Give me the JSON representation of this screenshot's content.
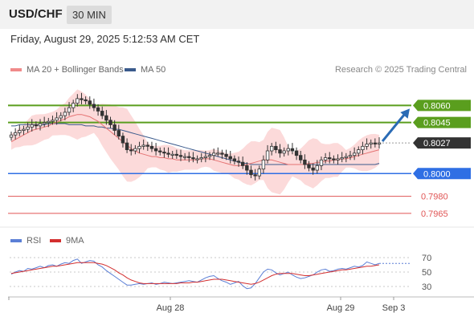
{
  "header": {
    "symbol": "USD/CHF",
    "interval": "30 MIN",
    "datetime": "Friday, August 29, 2025 5:12:53 AM CET"
  },
  "legend": {
    "ma20_label": "MA 20 + Bollinger Bands",
    "ma50_label": "MA 50",
    "research": "Research © 2025 Trading Central",
    "rsi_label": "RSI",
    "ma9_label": "9MA"
  },
  "colors": {
    "ma20": "#e57373",
    "bollinger_fill": "#fbd4d4",
    "ma50": "#3a5a8c",
    "resistance": "#5a9e1e",
    "support": "#2f6fe4",
    "target": "#e05555",
    "current": "#333333",
    "rsi": "#5b7fd6",
    "rsi_ma": "#d32f2f",
    "arrow": "#2a6bb5"
  },
  "chart_data": [
    {
      "type": "candlestick",
      "title": "USD/CHF",
      "x_labels": [
        "Aug 28",
        "Aug 29",
        "Sep 3"
      ],
      "ylim": [
        0.7955,
        0.8085
      ],
      "current_price": "0.8027",
      "levels": [
        {
          "label": "0.8060",
          "value": 0.806,
          "kind": "resistance"
        },
        {
          "label": "0.8045",
          "value": 0.8045,
          "kind": "resistance"
        },
        {
          "label": "0.8027",
          "value": 0.8027,
          "kind": "current"
        },
        {
          "label": "0.8000",
          "value": 0.8,
          "kind": "support"
        },
        {
          "label": "0.7980",
          "value": 0.798,
          "kind": "target"
        },
        {
          "label": "0.7965",
          "value": 0.7965,
          "kind": "target"
        }
      ],
      "close": [
        0.8034,
        0.8036,
        0.8038,
        0.8039,
        0.8041,
        0.8043,
        0.8042,
        0.8044,
        0.8045,
        0.8046,
        0.8047,
        0.8049,
        0.8051,
        0.8054,
        0.8058,
        0.8062,
        0.8066,
        0.8065,
        0.8064,
        0.8061,
        0.8058,
        0.8055,
        0.8051,
        0.8047,
        0.8043,
        0.8038,
        0.8033,
        0.8027,
        0.8021,
        0.802,
        0.8022,
        0.8024,
        0.8025,
        0.8024,
        0.8022,
        0.802,
        0.8019,
        0.8018,
        0.8017,
        0.8017,
        0.8016,
        0.8015,
        0.8015,
        0.8014,
        0.8013,
        0.8013,
        0.8014,
        0.8015,
        0.8016,
        0.8018,
        0.8018,
        0.8017,
        0.8015,
        0.8013,
        0.8011,
        0.801,
        0.8007,
        0.8003,
        0.7999,
        0.7998,
        0.8004,
        0.8012,
        0.802,
        0.8024,
        0.8021,
        0.8018,
        0.802,
        0.8022,
        0.802,
        0.8016,
        0.8012,
        0.8008,
        0.8005,
        0.8003,
        0.8007,
        0.8012,
        0.8014,
        0.8013,
        0.8012,
        0.8013,
        0.8014,
        0.8015,
        0.8016,
        0.8018,
        0.8021,
        0.8024,
        0.8026,
        0.8027,
        0.8026,
        0.8027
      ],
      "ma20": [
        0.8028,
        0.803,
        0.8032,
        0.8034,
        0.8036,
        0.8038,
        0.8039,
        0.804,
        0.8041,
        0.8042,
        0.8044,
        0.8045,
        0.8047,
        0.8048,
        0.805,
        0.8051,
        0.8052,
        0.8052,
        0.8051,
        0.805,
        0.8048,
        0.8046,
        0.8043,
        0.804,
        0.8037,
        0.8034,
        0.8031,
        0.8028,
        0.8025,
        0.8022,
        0.802,
        0.8018,
        0.8017,
        0.8016,
        0.8015,
        0.8015,
        0.8014,
        0.8014,
        0.8013,
        0.8013,
        0.8012,
        0.8012,
        0.8012,
        0.8012,
        0.8012,
        0.8012,
        0.8013,
        0.8013,
        0.8013,
        0.8012,
        0.8011,
        0.801,
        0.8009,
        0.8008,
        0.8007,
        0.8007,
        0.8007,
        0.8008,
        0.8009,
        0.801,
        0.8011,
        0.8012,
        0.8012,
        0.8012,
        0.8011,
        0.801,
        0.8009,
        0.8008,
        0.8008,
        0.8008,
        0.8008,
        0.8008,
        0.8009,
        0.8009,
        0.801,
        0.801,
        0.8011,
        0.8011,
        0.8012,
        0.8012,
        0.8013,
        0.8013,
        0.8014,
        0.8015,
        0.8016,
        0.8017,
        0.8018,
        0.8019,
        0.802,
        0.8021
      ],
      "ma50": [
        0.8042,
        0.8042,
        0.8043,
        0.8043,
        0.8043,
        0.8043,
        0.8043,
        0.8043,
        0.8043,
        0.8044,
        0.8044,
        0.8044,
        0.8044,
        0.8044,
        0.8043,
        0.8043,
        0.8043,
        0.8043,
        0.8042,
        0.8042,
        0.8042,
        0.8041,
        0.8041,
        0.804,
        0.804,
        0.8039,
        0.8039,
        0.8038,
        0.8037,
        0.8036,
        0.8035,
        0.8034,
        0.8033,
        0.8032,
        0.8031,
        0.803,
        0.8029,
        0.8028,
        0.8027,
        0.8026,
        0.8025,
        0.8024,
        0.8023,
        0.8022,
        0.8021,
        0.802,
        0.8019,
        0.8018,
        0.8017,
        0.8016,
        0.8015,
        0.8014,
        0.8013,
        0.8012,
        0.8011,
        0.801,
        0.8009,
        0.8009,
        0.8008,
        0.8008,
        0.8008,
        0.8008,
        0.8008,
        0.8008,
        0.8008,
        0.8008,
        0.8008,
        0.8008,
        0.8008,
        0.8008,
        0.8008,
        0.8008,
        0.8008,
        0.8008,
        0.8008,
        0.8008,
        0.8008,
        0.8008,
        0.8008,
        0.8008,
        0.8008,
        0.8008,
        0.8008,
        0.8008,
        0.8008,
        0.8008,
        0.8008,
        0.8008,
        0.8008,
        0.8009
      ],
      "projection": {
        "from": 0.8027,
        "to": 0.806
      }
    },
    {
      "type": "line",
      "series": [
        {
          "name": "RSI"
        },
        {
          "name": "9MA"
        }
      ],
      "ylim": [
        20,
        80
      ],
      "ticks": [
        "70",
        "50",
        "30"
      ],
      "tick_values": [
        70,
        50,
        30
      ],
      "rsi": [
        47,
        50,
        52,
        51,
        55,
        54,
        56,
        58,
        56,
        59,
        60,
        58,
        61,
        63,
        62,
        66,
        68,
        62,
        64,
        66,
        65,
        60,
        57,
        52,
        48,
        44,
        40,
        36,
        32,
        32,
        33,
        34,
        33,
        34,
        35,
        33,
        34,
        36,
        35,
        34,
        35,
        36,
        37,
        38,
        37,
        36,
        39,
        42,
        44,
        45,
        41,
        38,
        36,
        33,
        35,
        37,
        31,
        27,
        28,
        34,
        42,
        50,
        54,
        53,
        49,
        46,
        48,
        50,
        46,
        43,
        41,
        42,
        44,
        46,
        50,
        53,
        54,
        51,
        52,
        54,
        55,
        54,
        56,
        58,
        57,
        59,
        64,
        62,
        60,
        62
      ],
      "rsi_ma": [
        48,
        49,
        50,
        51,
        52,
        53,
        54,
        55,
        56,
        57,
        58,
        58,
        59,
        60,
        61,
        62,
        63,
        63,
        63,
        63,
        63,
        62,
        61,
        59,
        56,
        53,
        49,
        46,
        42,
        39,
        37,
        35,
        34,
        34,
        34,
        34,
        34,
        34,
        34,
        34,
        34,
        35,
        35,
        35,
        36,
        36,
        37,
        38,
        39,
        40,
        40,
        40,
        39,
        38,
        37,
        36,
        35,
        34,
        33,
        34,
        36,
        39,
        42,
        45,
        47,
        48,
        48,
        48,
        48,
        47,
        46,
        45,
        45,
        46,
        47,
        48,
        49,
        50,
        51,
        52,
        53,
        53,
        54,
        55,
        56,
        57,
        58,
        58,
        59,
        60
      ]
    }
  ]
}
